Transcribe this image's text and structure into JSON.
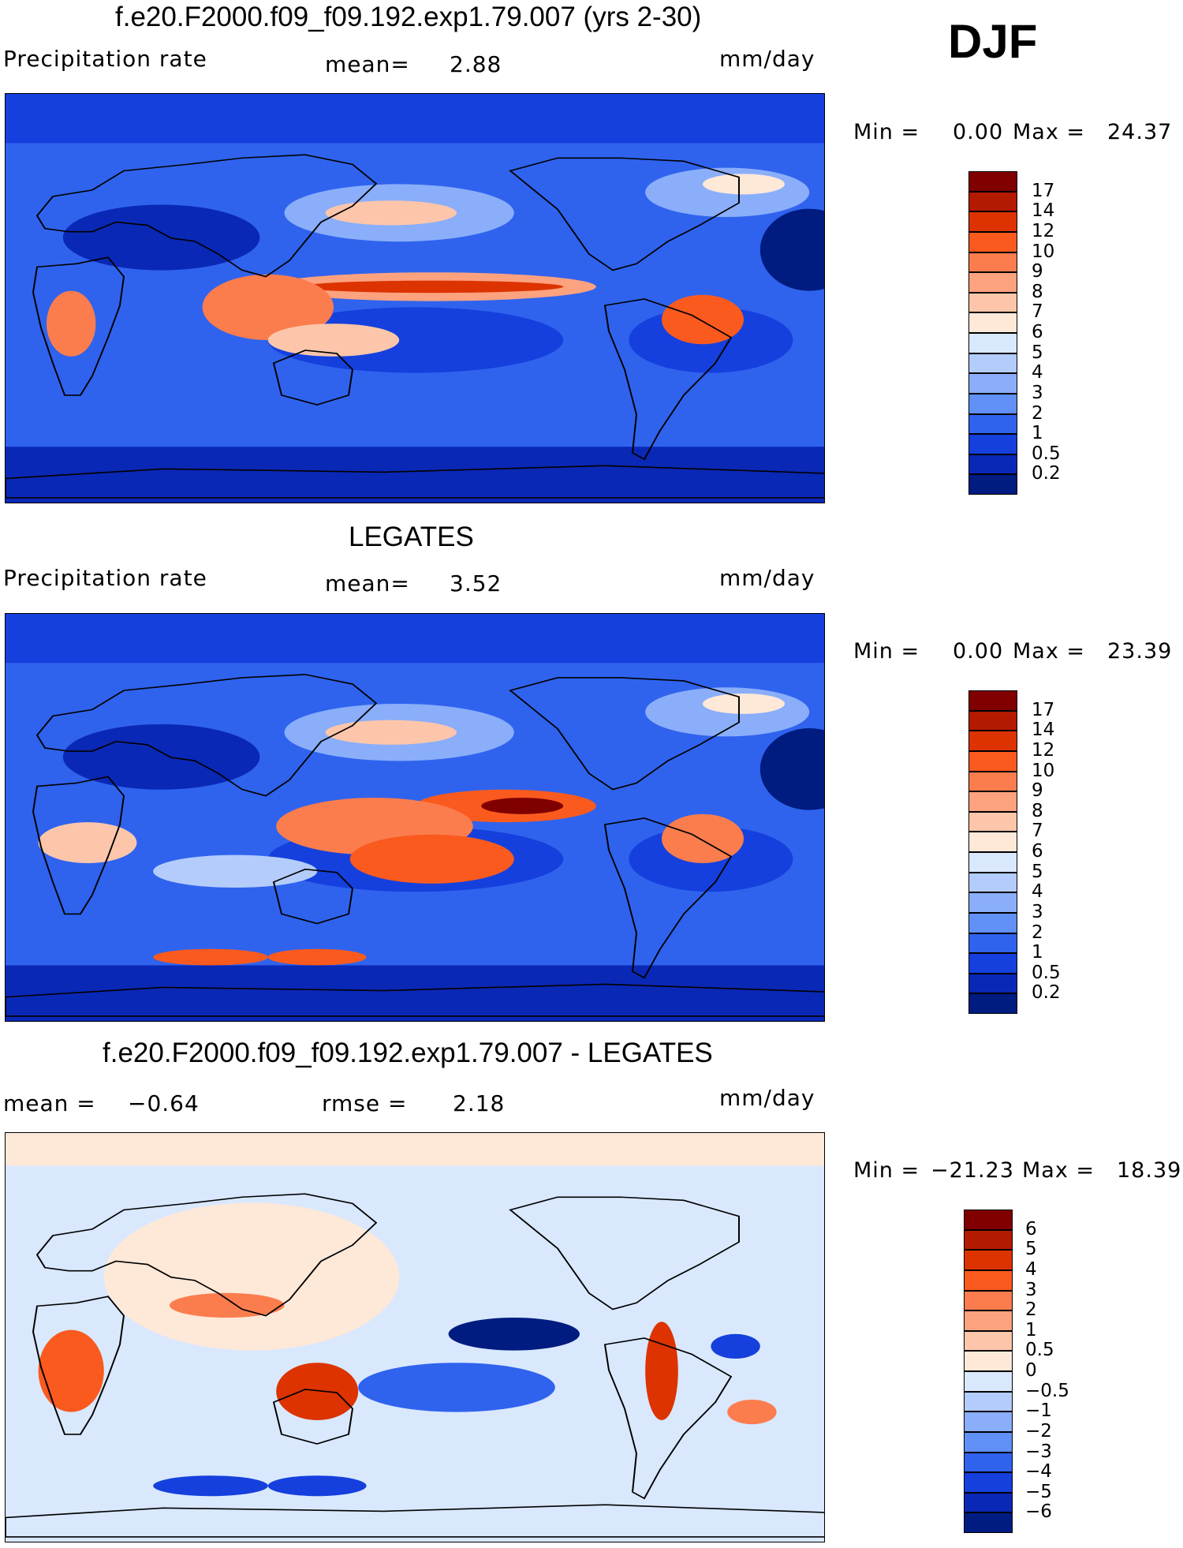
{
  "season": "DJF",
  "panels": [
    {
      "id": "model",
      "title": "f.e20.F2000.f09_f09.192.exp1.79.007 (yrs 2-30)",
      "left_label": "Precipitation rate",
      "center_label": "mean=",
      "center_value": "2.88",
      "right_label": "mm/day",
      "min_label": "Min =",
      "min_value": "0.00",
      "max_label": "Max =",
      "max_value": "24.37",
      "colorbar": {
        "labels": [
          "17",
          "14",
          "12",
          "10",
          "9",
          "8",
          "7",
          "6",
          "5",
          "4",
          "3",
          "2",
          "1",
          "0.5",
          "0.2"
        ],
        "colors": [
          "#800000",
          "#b31a00",
          "#dd3300",
          "#fa5a1e",
          "#fb7d4d",
          "#fca27f",
          "#fdc6aa",
          "#fee8d8",
          "#d9e8fd",
          "#b3ccfc",
          "#8aaefa",
          "#6190f6",
          "#2f63ee",
          "#1540dd",
          "#0a28b6",
          "#001c80"
        ]
      }
    },
    {
      "id": "obs",
      "title": "LEGATES",
      "left_label": "Precipitation rate",
      "center_label": "mean=",
      "center_value": "3.52",
      "right_label": "mm/day",
      "min_label": "Min =",
      "min_value": "0.00",
      "max_label": "Max =",
      "max_value": "23.39",
      "colorbar": {
        "labels": [
          "17",
          "14",
          "12",
          "10",
          "9",
          "8",
          "7",
          "6",
          "5",
          "4",
          "3",
          "2",
          "1",
          "0.5",
          "0.2"
        ],
        "colors": [
          "#800000",
          "#b31a00",
          "#dd3300",
          "#fa5a1e",
          "#fb7d4d",
          "#fca27f",
          "#fdc6aa",
          "#fee8d8",
          "#d9e8fd",
          "#b3ccfc",
          "#8aaefa",
          "#6190f6",
          "#2f63ee",
          "#1540dd",
          "#0a28b6",
          "#001c80"
        ]
      }
    },
    {
      "id": "diff",
      "title": "f.e20.F2000.f09_f09.192.exp1.79.007 - LEGATES",
      "left_label": "mean =",
      "left_value": "−0.64",
      "center_label": "rmse =",
      "center_value": "2.18",
      "right_label": "mm/day",
      "min_label": "Min =",
      "min_value": "−21.23",
      "max_label": "Max =",
      "max_value": "18.39",
      "colorbar": {
        "labels": [
          "6",
          "5",
          "4",
          "3",
          "2",
          "1",
          "0.5",
          "0",
          "−0.5",
          "−1",
          "−2",
          "−3",
          "−4",
          "−5",
          "−6"
        ],
        "colors": [
          "#800000",
          "#b31a00",
          "#dd3300",
          "#fa5a1e",
          "#fb7d4d",
          "#fca27f",
          "#fdc6aa",
          "#fee8d8",
          "#d9e8fd",
          "#b3ccfc",
          "#8aaefa",
          "#6190f6",
          "#2f63ee",
          "#1540dd",
          "#0a28b6",
          "#001c80"
        ]
      }
    }
  ]
}
